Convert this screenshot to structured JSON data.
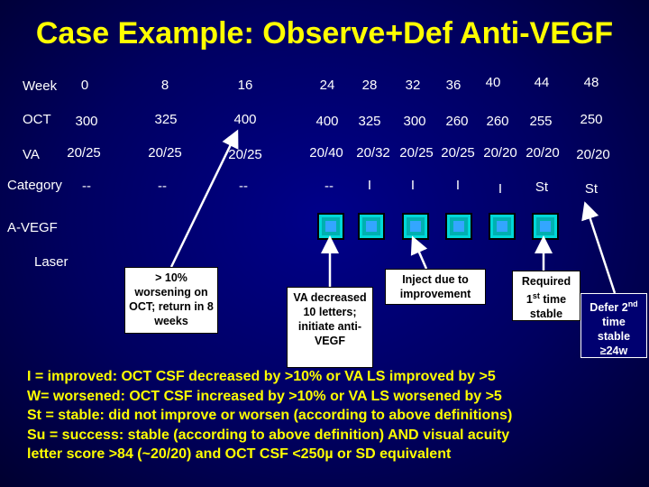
{
  "title": "Case Example: Observe+Def Anti-VEGF",
  "rows": {
    "week_label": "Week",
    "oct_label": "OCT",
    "va_label": "VA",
    "category_label": "Category",
    "avegf_label": "A-VEGF",
    "laser_label": "Laser"
  },
  "weeks": [
    "0",
    "8",
    "16",
    "24",
    "28",
    "32",
    "36",
    "40",
    "44",
    "48"
  ],
  "oct": [
    "300",
    "325",
    "400",
    "400",
    "325",
    "300",
    "260",
    "260",
    "255",
    "250"
  ],
  "va": [
    "20/25",
    "20/25",
    "20/25",
    "20/40",
    "20/32",
    "20/25",
    "20/25",
    "20/20",
    "20/20",
    "20/20"
  ],
  "category": [
    "--",
    "--",
    "--",
    "--",
    "I",
    "I",
    "I",
    "I",
    "St",
    "St"
  ],
  "avegf_marks": [
    "24",
    "28",
    "32",
    "36",
    "40",
    "44"
  ],
  "callouts": {
    "worsening": "> 10% worsening on OCT; return in 8 weeks",
    "va_decreased": "VA decreased 10 letters; initiate anti-VEGF",
    "inject": "Inject due to improvement",
    "required_a": "Required 1",
    "required_sup": "st",
    "required_b": " time stable",
    "defer_a": "Defer 2",
    "defer_sup": "nd",
    "defer_b": " time stable ≥24w"
  },
  "legend": {
    "i_line": "I = improved: OCT CSF decreased by >10% or VA LS improved by >5",
    "w_line": "W= worsened: OCT CSF increased by >10% or VA LS worsened by >5",
    "st_line": "St = stable: did not improve or worsen (according to above definitions)",
    "su_line": "Su = success: stable (according to above definition) AND visual acuity",
    "su_line2": "letter score >84 (~20/20) and OCT CSF <250µ or SD equivalent"
  },
  "colors": {
    "title": "#ffff00",
    "legend": "#ffff00",
    "marker": "#00b0b0",
    "background": "#000070"
  }
}
